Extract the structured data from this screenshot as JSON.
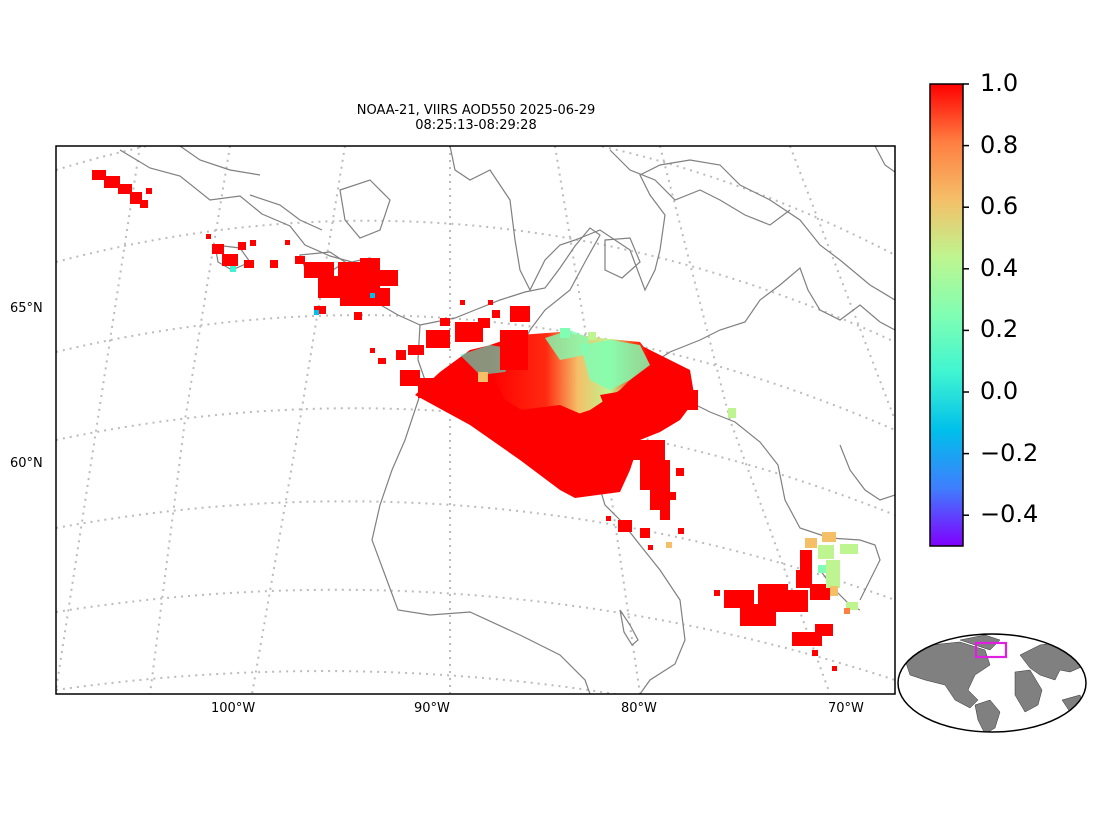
{
  "title_line1": "NOAA-21, VIIRS AOD550 2025-06-29",
  "title_line2": "08:25:13-08:29:28",
  "lat_labels": [
    "65°N",
    "60°N"
  ],
  "lon_labels": [
    "100°W",
    "90°W",
    "80°W",
    "70°W"
  ],
  "colorbar": {
    "colormap": "rainbow",
    "vmin": -0.5,
    "vmax": 1.0,
    "tick_labels": [
      "1.0",
      "0.8",
      "0.6",
      "0.4",
      "0.2",
      "0.0",
      "−0.2",
      "−0.4"
    ],
    "colors": [
      "#ff0000",
      "#ff7e41",
      "#f5bf68",
      "#bef590",
      "#80feb3",
      "#3ff5d1",
      "#00bfeb",
      "#3f7efd",
      "#8000ff"
    ]
  },
  "map": {
    "projection": "Lambert conformal (Hudson Bay region)",
    "coastline_color": "#808080",
    "gridline_color": "#bbbbbb",
    "inset_land_color": "#808080",
    "inset_box_color": "#e020e0"
  }
}
